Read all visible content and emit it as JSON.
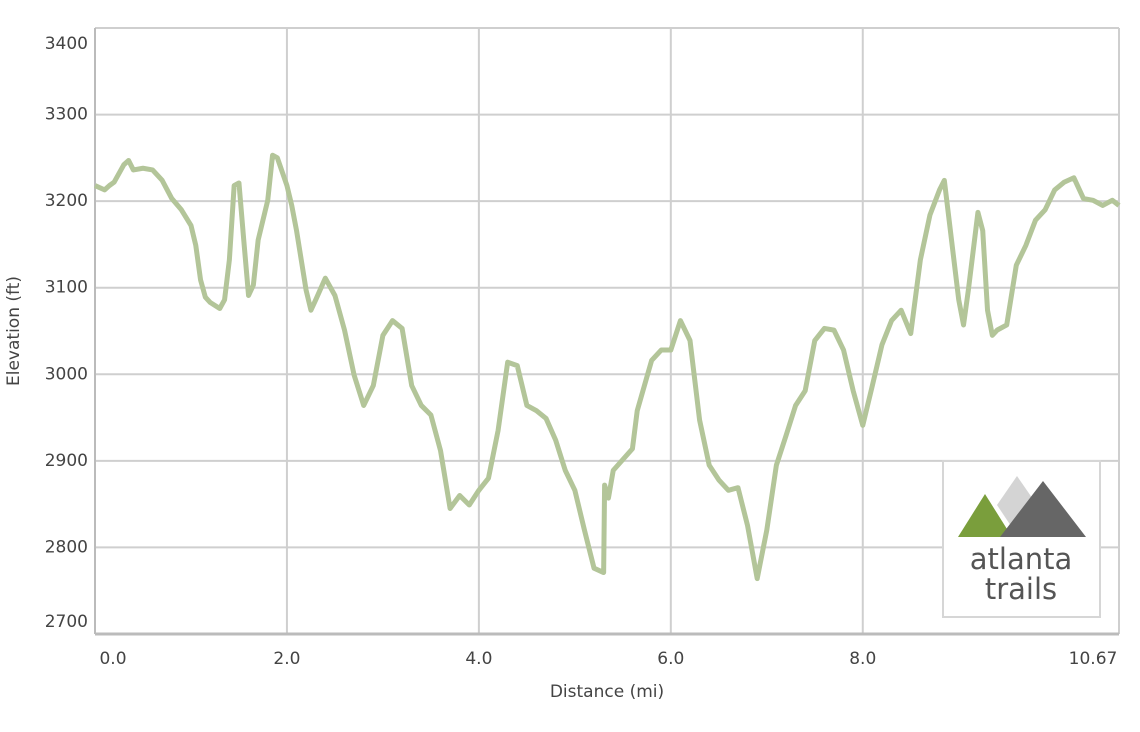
{
  "chart_data": {
    "type": "line",
    "x_label": "Distance (mi)",
    "y_label": "Elevation (ft)",
    "x": [
      0,
      0.1,
      0.15,
      0.2,
      0.3,
      0.35,
      0.4,
      0.5,
      0.6,
      0.7,
      0.8,
      0.9,
      1.0,
      1.05,
      1.1,
      1.15,
      1.2,
      1.3,
      1.35,
      1.4,
      1.45,
      1.5,
      1.55,
      1.6,
      1.65,
      1.7,
      1.8,
      1.85,
      1.9,
      2.0,
      2.05,
      2.1,
      2.2,
      2.25,
      2.3,
      2.4,
      2.5,
      2.6,
      2.7,
      2.8,
      2.9,
      3.0,
      3.1,
      3.2,
      3.3,
      3.4,
      3.5,
      3.6,
      3.7,
      3.8,
      3.9,
      4.0,
      4.1,
      4.2,
      4.3,
      4.4,
      4.5,
      4.6,
      4.7,
      4.8,
      4.9,
      5.0,
      5.1,
      5.2,
      5.3,
      5.31,
      5.35,
      5.4,
      5.6,
      5.65,
      5.8,
      5.9,
      6.0,
      6.1,
      6.2,
      6.3,
      6.4,
      6.5,
      6.6,
      6.7,
      6.8,
      6.9,
      7.0,
      7.1,
      7.2,
      7.3,
      7.4,
      7.5,
      7.6,
      7.7,
      7.8,
      7.9,
      8.0,
      8.1,
      8.2,
      8.3,
      8.4,
      8.5,
      8.6,
      8.7,
      8.8,
      8.85,
      8.9,
      9.0,
      9.05,
      9.1,
      9.2,
      9.25,
      9.3,
      9.35,
      9.4,
      9.5,
      9.6,
      9.7,
      9.8,
      9.9,
      10.0,
      10.1,
      10.2,
      10.3,
      10.4,
      10.5,
      10.6,
      10.67
    ],
    "series": [
      {
        "name": "Elevation",
        "color": "#b3c599",
        "values": [
          3218,
          3213,
          3218,
          3222,
          3242,
          3247,
          3236,
          3238,
          3236,
          3224,
          3203,
          3190,
          3172,
          3149,
          3109,
          3089,
          3083,
          3076,
          3086,
          3132,
          3218,
          3221,
          3155,
          3091,
          3103,
          3155,
          3201,
          3253,
          3250,
          3218,
          3195,
          3166,
          3097,
          3074,
          3086,
          3111,
          3091,
          3051,
          2999,
          2964,
          2987,
          3045,
          3062,
          3053,
          2987,
          2964,
          2953,
          2912,
          2845,
          2860,
          2849,
          2866,
          2880,
          2935,
          3014,
          3010,
          2964,
          2958,
          2949,
          2924,
          2889,
          2866,
          2820,
          2776,
          2771,
          2872,
          2857,
          2889,
          2914,
          2958,
          3016,
          3028,
          3028,
          3062,
          3039,
          2947,
          2895,
          2878,
          2866,
          2869,
          2825,
          2764,
          2820,
          2895,
          2929,
          2964,
          2981,
          3039,
          3053,
          3051,
          3028,
          2981,
          2941,
          2987,
          3034,
          3062,
          3074,
          3047,
          3132,
          3184,
          3213,
          3224,
          3178,
          3086,
          3057,
          3097,
          3187,
          3166,
          3074,
          3045,
          3051,
          3057,
          3126,
          3149,
          3178,
          3190,
          3213,
          3222,
          3227,
          3203,
          3201,
          3195,
          3201,
          3195
        ]
      }
    ],
    "xlim": [
      0,
      10.67
    ],
    "xticks": [
      {
        "value": 0,
        "label": "0.0"
      },
      {
        "value": 2,
        "label": "2.0"
      },
      {
        "value": 4,
        "label": "4.0"
      },
      {
        "value": 6,
        "label": "6.0"
      },
      {
        "value": 8,
        "label": "8.0"
      },
      10.67
    ],
    "ylim": [
      2700,
      3400
    ],
    "yticks": [
      2700,
      2800,
      2900,
      3000,
      3100,
      3200,
      3300,
      3400
    ],
    "grid": true,
    "logo_text": [
      "atlanta",
      "trails"
    ]
  }
}
